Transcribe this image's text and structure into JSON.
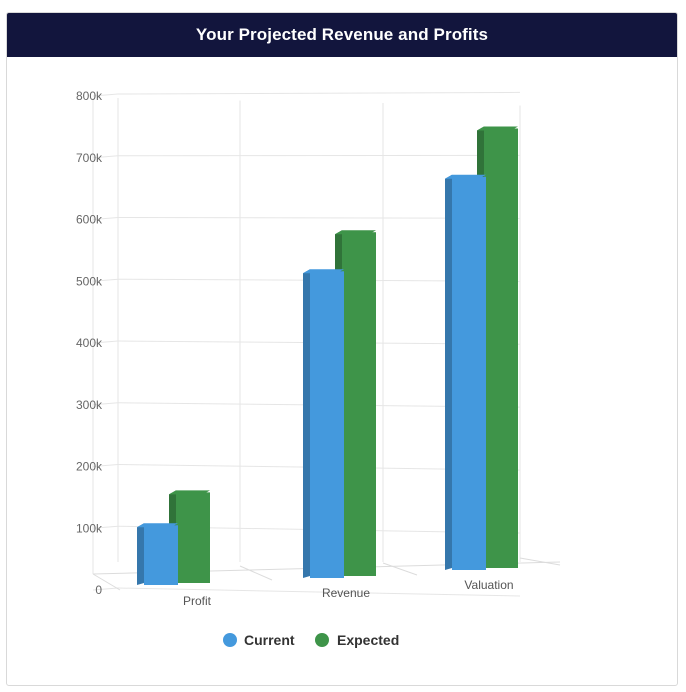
{
  "header": {
    "title": "Your Projected Revenue and Profits"
  },
  "colors": {
    "header_bg": "#12153d",
    "current": "#4499dd",
    "expected": "#3e9449"
  },
  "chart_data": {
    "type": "bar",
    "title": "Your Projected Revenue and Profits",
    "categories": [
      "Profit",
      "Revenue",
      "Valuation"
    ],
    "series": [
      {
        "name": "Current",
        "color": "#4499dd",
        "values": [
          100000,
          500000,
          640000
        ]
      },
      {
        "name": "Expected",
        "color": "#3e9449",
        "values": [
          150000,
          560000,
          715000
        ]
      }
    ],
    "ylim": [
      0,
      800000
    ],
    "yticks": [
      {
        "value": 0,
        "label": "0"
      },
      {
        "value": 100000,
        "label": "100k"
      },
      {
        "value": 200000,
        "label": "200k"
      },
      {
        "value": 300000,
        "label": "300k"
      },
      {
        "value": 400000,
        "label": "400k"
      },
      {
        "value": 500000,
        "label": "500k"
      },
      {
        "value": 600000,
        "label": "600k"
      },
      {
        "value": 700000,
        "label": "700k"
      },
      {
        "value": 800000,
        "label": "800k"
      }
    ],
    "grid": true,
    "legend_position": "bottom-center",
    "style": "3d"
  }
}
